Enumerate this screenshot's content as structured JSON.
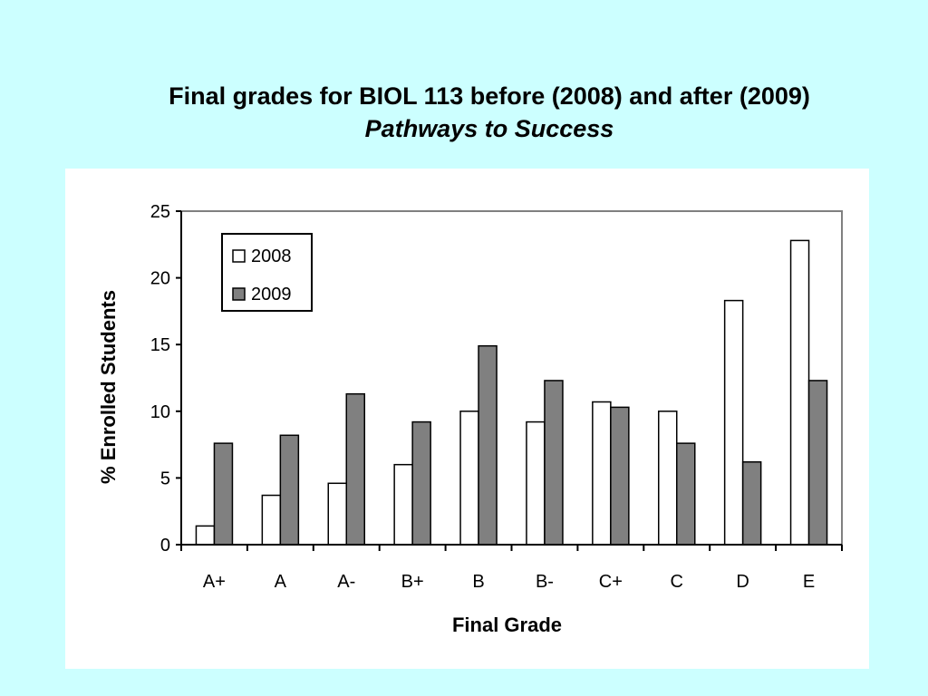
{
  "slide": {
    "title_line1": "Final grades for BIOL 113 before (2008) and after (2009)",
    "title_line2": "Pathways to Success"
  },
  "colors": {
    "background": "#ccffff",
    "panel": "#ffffff",
    "series_2008": "#ffffff",
    "series_2009": "#808080"
  },
  "chart_data": {
    "type": "bar",
    "xlabel": "Final Grade",
    "ylabel": "% Enrolled Students",
    "ylim": [
      0,
      25
    ],
    "yticks": [
      0,
      5,
      10,
      15,
      20,
      25
    ],
    "grid": false,
    "legend_position": "top-left",
    "categories": [
      "A+",
      "A",
      "A-",
      "B+",
      "B",
      "B-",
      "C+",
      "C",
      "D",
      "E"
    ],
    "series": [
      {
        "name": "2008",
        "color": "#ffffff",
        "values": [
          1.4,
          3.7,
          4.6,
          6.0,
          10.0,
          9.2,
          10.7,
          10.0,
          18.3,
          22.8
        ]
      },
      {
        "name": "2009",
        "color": "#808080",
        "values": [
          7.6,
          8.2,
          11.3,
          9.2,
          14.9,
          12.3,
          10.3,
          7.6,
          6.2,
          12.3
        ]
      }
    ]
  }
}
